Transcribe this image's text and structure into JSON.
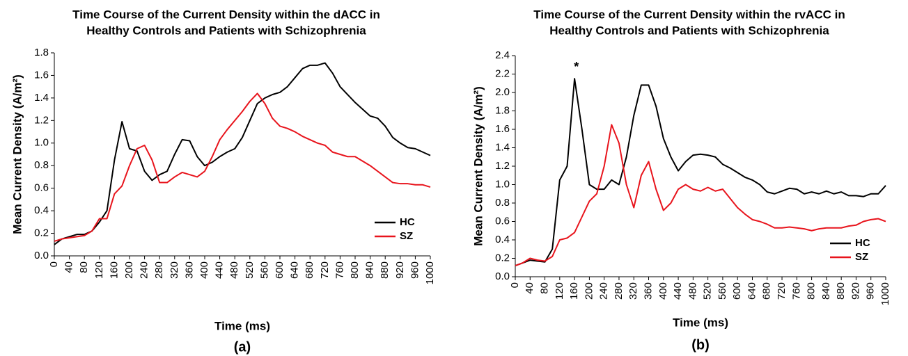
{
  "chart_data": [
    {
      "type": "line",
      "title": [
        "Time Course of the Current Density within the dACC in",
        "Healthy Controls and Patients with Schizophrenia"
      ],
      "xlabel": "Time (ms)",
      "ylabel": "Mean Current Density (A/m²)",
      "caption": "(a)",
      "x": [
        0,
        20,
        40,
        60,
        80,
        100,
        120,
        140,
        160,
        180,
        200,
        220,
        240,
        260,
        280,
        300,
        320,
        340,
        360,
        380,
        400,
        420,
        440,
        460,
        480,
        500,
        520,
        540,
        560,
        580,
        600,
        620,
        640,
        660,
        680,
        700,
        720,
        740,
        760,
        780,
        800,
        820,
        840,
        860,
        880,
        900,
        920,
        940,
        960,
        980,
        1000
      ],
      "series": [
        {
          "name": "HC",
          "color": "#000000",
          "values": [
            0.1,
            0.15,
            0.17,
            0.19,
            0.19,
            0.22,
            0.3,
            0.4,
            0.85,
            1.19,
            0.95,
            0.93,
            0.75,
            0.67,
            0.72,
            0.75,
            0.9,
            1.03,
            1.02,
            0.88,
            0.8,
            0.83,
            0.88,
            0.92,
            0.95,
            1.05,
            1.2,
            1.35,
            1.4,
            1.43,
            1.45,
            1.5,
            1.58,
            1.66,
            1.69,
            1.69,
            1.71,
            1.62,
            1.5,
            1.43,
            1.36,
            1.3,
            1.24,
            1.22,
            1.15,
            1.05,
            1.0,
            0.96,
            0.95,
            0.92,
            0.89
          ]
        },
        {
          "name": "SZ",
          "color": "#e8141c",
          "values": [
            0.13,
            0.15,
            0.16,
            0.17,
            0.18,
            0.22,
            0.33,
            0.33,
            0.55,
            0.62,
            0.8,
            0.95,
            0.98,
            0.85,
            0.65,
            0.65,
            0.7,
            0.74,
            0.72,
            0.7,
            0.75,
            0.88,
            1.03,
            1.12,
            1.2,
            1.28,
            1.37,
            1.44,
            1.35,
            1.22,
            1.15,
            1.13,
            1.1,
            1.06,
            1.03,
            1.0,
            0.98,
            0.92,
            0.9,
            0.88,
            0.88,
            0.84,
            0.8,
            0.75,
            0.7,
            0.65,
            0.64,
            0.64,
            0.63,
            0.63,
            0.61
          ]
        }
      ],
      "xlim": [
        0,
        1000
      ],
      "xticks": [
        0,
        40,
        80,
        120,
        160,
        200,
        240,
        280,
        320,
        360,
        400,
        440,
        480,
        520,
        560,
        600,
        640,
        680,
        720,
        760,
        800,
        840,
        880,
        920,
        960,
        1000
      ],
      "ylim": [
        0,
        1.8
      ],
      "yticks": [
        {
          "value": 0,
          "label": "0.0"
        },
        0.2,
        0.4,
        0.6,
        0.8,
        {
          "value": 1,
          "label": "1.0"
        },
        1.2,
        1.4,
        1.6,
        1.8
      ],
      "legend": "lower right"
    },
    {
      "type": "line",
      "title": [
        "Time Course of the Current Density within the rvACC in",
        "Healthy Controls and Patients with Schizophrenia"
      ],
      "xlabel": "Time (ms)",
      "ylabel": "Mean Current Density (A/m²)",
      "caption": "(b)",
      "annotations": [
        {
          "text": "*",
          "x": 165,
          "y": 2.27
        }
      ],
      "x": [
        0,
        20,
        40,
        60,
        80,
        100,
        120,
        140,
        160,
        180,
        200,
        220,
        240,
        260,
        280,
        300,
        320,
        340,
        360,
        380,
        400,
        420,
        440,
        460,
        480,
        500,
        520,
        540,
        560,
        580,
        600,
        620,
        640,
        660,
        680,
        700,
        720,
        740,
        760,
        780,
        800,
        820,
        840,
        860,
        880,
        900,
        920,
        940,
        960,
        980,
        1000
      ],
      "series": [
        {
          "name": "HC",
          "color": "#000000",
          "values": [
            0.12,
            0.15,
            0.18,
            0.17,
            0.16,
            0.3,
            1.05,
            1.2,
            2.15,
            1.6,
            1.0,
            0.95,
            0.95,
            1.05,
            1.0,
            1.3,
            1.75,
            2.08,
            2.08,
            1.85,
            1.5,
            1.3,
            1.15,
            1.25,
            1.32,
            1.33,
            1.32,
            1.3,
            1.22,
            1.18,
            1.13,
            1.08,
            1.05,
            1.0,
            0.92,
            0.9,
            0.93,
            0.96,
            0.95,
            0.9,
            0.92,
            0.9,
            0.93,
            0.9,
            0.92,
            0.88,
            0.88,
            0.87,
            0.9,
            0.9,
            0.99
          ]
        },
        {
          "name": "SZ",
          "color": "#e8141c",
          "values": [
            0.12,
            0.15,
            0.2,
            0.18,
            0.17,
            0.22,
            0.4,
            0.42,
            0.48,
            0.65,
            0.82,
            0.9,
            1.2,
            1.65,
            1.45,
            1.0,
            0.75,
            1.1,
            1.25,
            0.95,
            0.72,
            0.8,
            0.95,
            1.0,
            0.95,
            0.93,
            0.97,
            0.93,
            0.95,
            0.85,
            0.75,
            0.68,
            0.62,
            0.6,
            0.57,
            0.53,
            0.53,
            0.54,
            0.53,
            0.52,
            0.5,
            0.52,
            0.53,
            0.53,
            0.53,
            0.55,
            0.56,
            0.6,
            0.62,
            0.63,
            0.6
          ]
        }
      ],
      "xlim": [
        0,
        1000
      ],
      "xticks": [
        0,
        40,
        80,
        120,
        160,
        200,
        240,
        280,
        320,
        360,
        400,
        440,
        480,
        520,
        560,
        600,
        640,
        680,
        720,
        760,
        800,
        840,
        880,
        920,
        960,
        1000
      ],
      "ylim": [
        0,
        2.4
      ],
      "yticks": [
        {
          "value": 0,
          "label": "0.0"
        },
        0.2,
        0.4,
        0.6,
        0.8,
        {
          "value": 1,
          "label": "1.0"
        },
        1.2,
        1.4,
        1.6,
        1.8,
        {
          "value": 2,
          "label": "2.0"
        },
        2.2,
        2.4
      ],
      "legend": "lower right"
    }
  ]
}
